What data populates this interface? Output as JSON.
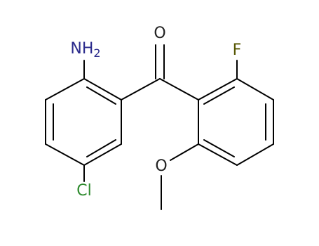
{
  "atoms": [
    {
      "label": "NH",
      "subscript": "2"
    },
    {
      "label": "O"
    },
    {
      "label": "F"
    },
    {
      "label": "O"
    },
    {
      "label": "Cl"
    }
  ]
}
